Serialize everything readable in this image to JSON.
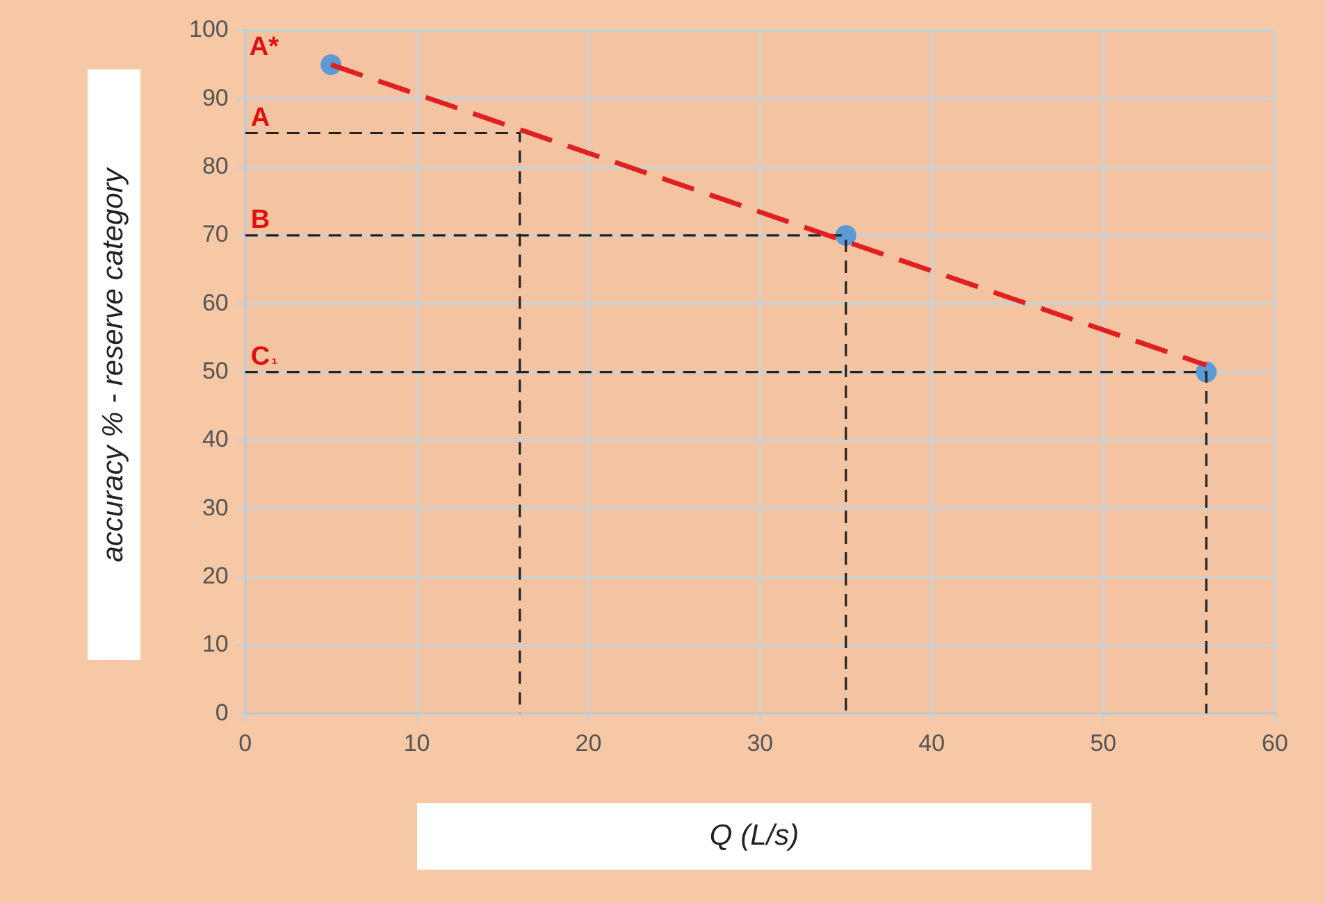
{
  "chart_data": {
    "type": "scatter",
    "xlabel": "Q (L/s)",
    "ylabel": "accuracy % - reserve category",
    "xlim": [
      0,
      60
    ],
    "xticks": [
      0,
      10,
      20,
      30,
      40,
      50,
      60
    ],
    "ylim": [
      0,
      100
    ],
    "yticks": [
      0,
      10,
      20,
      30,
      40,
      50,
      60,
      70,
      80,
      90,
      100
    ],
    "grid": true,
    "legend": false,
    "series": [
      {
        "type": "line",
        "line_style": "dashed",
        "marker": "none",
        "color": "#e02020",
        "x": [
          5,
          56
        ],
        "values": [
          95,
          51
        ]
      },
      {
        "type": "line",
        "line_style": "dashed",
        "marker": "none",
        "color": "#222222",
        "x": [
          0,
          16,
          16
        ],
        "values": [
          85,
          85,
          0
        ]
      },
      {
        "type": "line",
        "line_style": "dashed",
        "marker": "none",
        "color": "#222222",
        "x": [
          0,
          35,
          35
        ],
        "values": [
          70,
          70,
          0
        ]
      },
      {
        "type": "line",
        "line_style": "dashed",
        "marker": "none",
        "color": "#222222",
        "x": [
          0,
          56,
          56
        ],
        "values": [
          50,
          50,
          0
        ]
      },
      {
        "marker": "circle",
        "color": "#5b9bd5",
        "x": [
          5,
          35,
          56
        ],
        "values": [
          95,
          70,
          50
        ]
      }
    ],
    "annotations": [
      "A*",
      {
        "text": "A",
        "y": 85
      },
      {
        "text": "B",
        "y": 70
      },
      {
        "text": "C₁",
        "y": 50
      }
    ]
  }
}
